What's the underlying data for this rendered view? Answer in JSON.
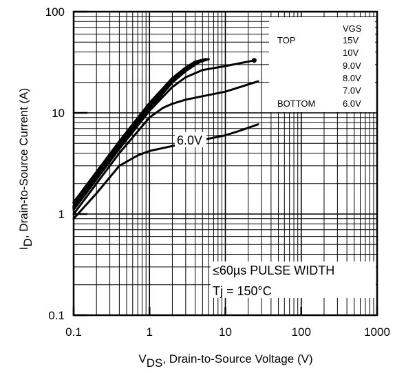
{
  "chart_data": {
    "type": "line",
    "x_scale": "log",
    "y_scale": "log",
    "xlim": [
      0.1,
      1000
    ],
    "ylim": [
      0.1,
      100
    ],
    "grid": true,
    "x_ticks": [
      "0.1",
      "1",
      "10",
      "100",
      "1000"
    ],
    "y_ticks": [
      "0.1",
      "1",
      "10",
      "100"
    ],
    "xlabel": {
      "prefix": "V",
      "subscript": "DS",
      "rest": ", Drain-to-Source Voltage (V)"
    },
    "ylabel": {
      "prefix": "I",
      "subscript": "D",
      "rest": ", Drain-to-Source Current (A)"
    },
    "legend": {
      "header": "VGS",
      "top_label": "TOP",
      "bottom_label": "BOTTOM",
      "entries": [
        "15V",
        "10V",
        "9.0V",
        "8.0V",
        "7.0V",
        "6.0V"
      ]
    },
    "annotations": [
      "≤60µs PULSE WIDTH",
      "Tj = 150°C"
    ],
    "curve_label": "6.0V",
    "series": [
      {
        "x": [
          0.1,
          0.2,
          0.4,
          1,
          2,
          3,
          4,
          5.5
        ],
        "y": [
          1.3,
          2.6,
          5.2,
          12.5,
          22,
          28,
          32,
          34
        ]
      },
      {
        "x": [
          0.1,
          0.2,
          0.4,
          1,
          2,
          3,
          4,
          6
        ],
        "y": [
          1.2,
          2.4,
          4.9,
          11.5,
          21,
          27,
          31,
          34
        ]
      },
      {
        "x": [
          0.1,
          0.2,
          0.4,
          1,
          2,
          3,
          4,
          5
        ],
        "y": [
          1.15,
          2.3,
          4.6,
          11,
          20,
          26,
          30,
          33
        ]
      },
      {
        "x": [
          0.1,
          0.2,
          0.4,
          1,
          2,
          3,
          5,
          10,
          24
        ],
        "y": [
          1.1,
          2.2,
          4.4,
          10.5,
          18,
          22.5,
          26.5,
          29,
          33
        ]
      },
      {
        "x": [
          0.1,
          0.2,
          0.4,
          1,
          1.5,
          2,
          3,
          5,
          10,
          27
        ],
        "y": [
          1.0,
          2.0,
          4.0,
          9.0,
          11.2,
          12.3,
          13.5,
          14.6,
          16.2,
          20.5
        ]
      },
      {
        "x": [
          0.1,
          0.2,
          0.4,
          0.7,
          1,
          2,
          3,
          5,
          10,
          15,
          27
        ],
        "y": [
          0.9,
          1.6,
          3.0,
          3.8,
          4.2,
          4.7,
          5.0,
          5.4,
          6.0,
          6.6,
          7.7
        ]
      }
    ]
  }
}
